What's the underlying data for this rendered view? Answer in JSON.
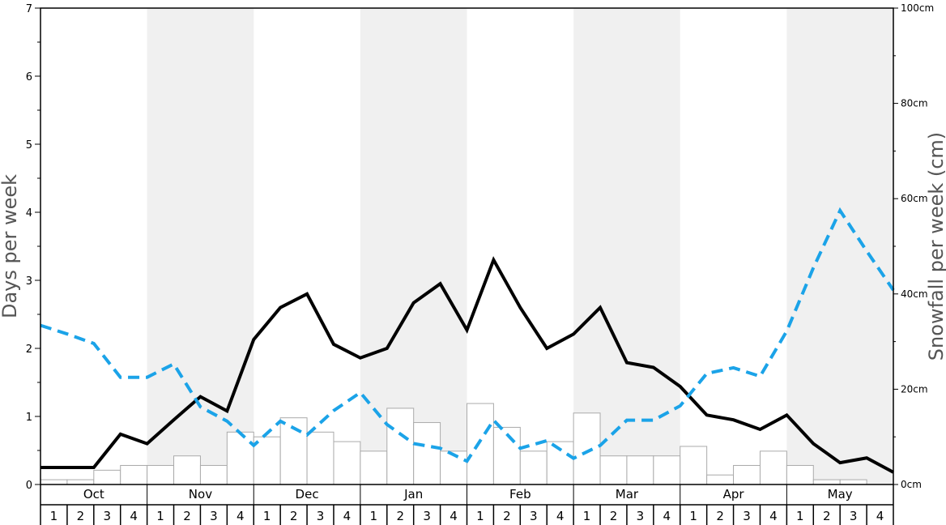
{
  "chart_data": {
    "type": "bar+line",
    "months": [
      "Oct",
      "Nov",
      "Dec",
      "Jan",
      "Feb",
      "Mar",
      "Apr",
      "May"
    ],
    "weeks_per_month": [
      "1",
      "2",
      "3",
      "4"
    ],
    "left_axis": {
      "label": "Days per week",
      "range": [
        0,
        7
      ],
      "ticks": [
        "0",
        "1",
        "2",
        "3",
        "4",
        "5",
        "6",
        "7"
      ]
    },
    "right_axis": {
      "label": "Snowfall per week (cm)",
      "range": [
        0,
        100
      ],
      "ticks": [
        "0cm",
        "20cm",
        "40cm",
        "60cm",
        "80cm",
        "100cm"
      ]
    },
    "grid": false,
    "alternating_month_shading": true,
    "colors": {
      "bars_fill": "#ffffff",
      "bars_stroke": "#aaaaaa",
      "black_line": "#000000",
      "dashed_line": "#1ba3e8",
      "shade": "#f0f0f0"
    },
    "series": [
      {
        "type": "bar",
        "axis": "left",
        "values": [
          0.07,
          0.07,
          0.21,
          0.28,
          0.28,
          0.42,
          0.28,
          0.77,
          0.7,
          0.98,
          0.77,
          0.63,
          0.49,
          1.12,
          0.91,
          0.49,
          1.19,
          0.84,
          0.49,
          0.63,
          1.05,
          0.42,
          0.42,
          0.42,
          0.56,
          0.14,
          0.28,
          0.49,
          0.28,
          0.07,
          0.07,
          0.0
        ]
      },
      {
        "type": "line",
        "axis": "left",
        "style": "solid",
        "values": [
          0.25,
          0.25,
          0.25,
          0.74,
          0.6,
          0.95,
          1.29,
          1.08,
          2.13,
          2.6,
          2.8,
          2.06,
          1.86,
          2.0,
          2.67,
          2.95,
          2.27,
          3.3,
          2.6,
          2.0,
          2.21,
          2.6,
          1.79,
          1.72,
          1.44,
          1.02,
          0.95,
          0.81,
          1.02,
          0.6,
          0.32,
          0.39,
          0.18
        ]
      },
      {
        "type": "line",
        "axis": "right",
        "style": "dashed",
        "values": [
          33.4,
          31.6,
          29.6,
          22.5,
          22.5,
          25.3,
          16.3,
          13.3,
          8.2,
          13.3,
          10.4,
          15.5,
          19.3,
          12.6,
          8.6,
          7.6,
          4.9,
          13.5,
          7.6,
          9.2,
          5.5,
          8.2,
          13.5,
          13.5,
          16.5,
          23.3,
          24.5,
          22.7,
          32.2,
          45.5,
          57.5,
          49.0,
          40.8
        ]
      }
    ]
  }
}
